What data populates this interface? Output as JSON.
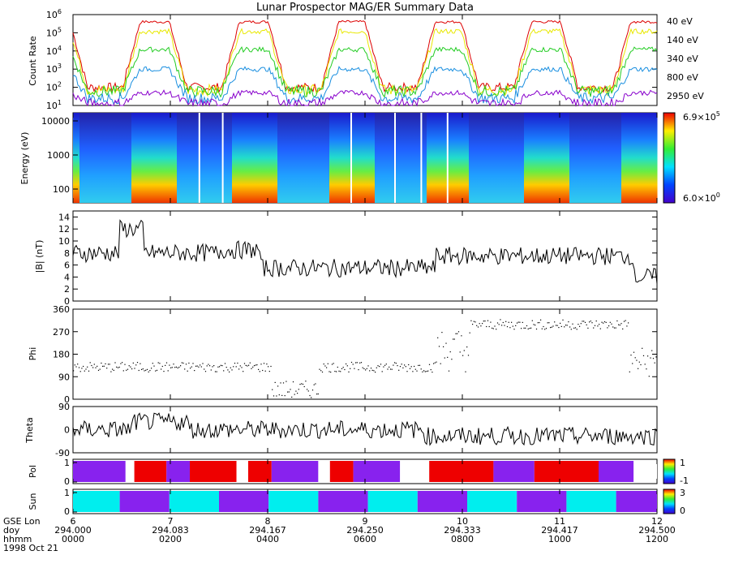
{
  "chart_data": {
    "title": "Lunar Prospector MAG/ER Summary Data",
    "type": "multi-panel time series",
    "panels": [
      {
        "name": "count-rate",
        "type": "line",
        "ylabel": "Count Rate",
        "yscale": "log",
        "ylim": [
          10,
          1000000
        ],
        "yticks": [
          "10",
          "10",
          "10",
          "10",
          "10",
          "10"
        ],
        "yticks_exp": [
          "1",
          "2",
          "3",
          "4",
          "5",
          "6"
        ],
        "series": [
          {
            "name": "40 eV",
            "color": "#dd0000",
            "low": 100,
            "high": 400000
          },
          {
            "name": "140 eV",
            "color": "#e8e800",
            "low": 70,
            "high": 120000
          },
          {
            "name": "340 eV",
            "color": "#22cc22",
            "low": 60,
            "high": 12000
          },
          {
            "name": "800 eV",
            "color": "#1a8fe0",
            "low": 25,
            "high": 1000
          },
          {
            "name": "2950 eV",
            "color": "#8800cc",
            "low": 12,
            "high": 50
          }
        ]
      },
      {
        "name": "energy-spectrogram",
        "type": "heatmap",
        "ylabel": "Energy (eV)",
        "yticks": [
          "10000",
          "1000",
          "100"
        ],
        "colorbar_max_mant": "6.9×10",
        "colorbar_max_exp": "5",
        "colorbar_min_mant": "6.0×10",
        "colorbar_min_exp": "0"
      },
      {
        "name": "field-magnitude",
        "type": "line",
        "ylabel": "|B| (nT)",
        "ylim": [
          0,
          15
        ],
        "yticks": [
          "0",
          "2",
          "4",
          "6",
          "8",
          "10",
          "12",
          "14"
        ]
      },
      {
        "name": "phi",
        "type": "scatter",
        "ylabel": "Phi",
        "ylim": [
          0,
          360
        ],
        "yticks": [
          "0",
          "90",
          "180",
          "270",
          "360"
        ]
      },
      {
        "name": "theta",
        "type": "line",
        "ylabel": "Theta",
        "ylim": [
          -90,
          90
        ],
        "yticks": [
          "-90",
          "0",
          "90"
        ]
      },
      {
        "name": "polarity",
        "type": "bar",
        "ylabel": "Pol",
        "yticks": [
          "0",
          "1"
        ],
        "colorbar": [
          "1",
          "-1"
        ]
      },
      {
        "name": "sun",
        "type": "bar",
        "ylabel": "Sun",
        "yticks": [
          "0",
          "1"
        ],
        "colorbar": [
          "3",
          "0"
        ]
      }
    ],
    "x_axis": {
      "row_labels": [
        "GSE Lon",
        "doy",
        "hhmm",
        "1998 Oct 21"
      ],
      "ticks": [
        {
          "lon": "6",
          "doy": "294.000",
          "hhmm": "0000"
        },
        {
          "lon": "7",
          "doy": "294.083",
          "hhmm": "0200"
        },
        {
          "lon": "8",
          "doy": "294.167",
          "hhmm": "0400"
        },
        {
          "lon": "9",
          "doy": "294.250",
          "hhmm": "0600"
        },
        {
          "lon": "10",
          "doy": "294.333",
          "hhmm": "0800"
        },
        {
          "lon": "11",
          "doy": "294.417",
          "hhmm": "1000"
        },
        {
          "lon": "12",
          "doy": "294.500",
          "hhmm": "1200"
        }
      ]
    },
    "polarity_segments": [
      [
        "purple",
        0.0,
        0.09
      ],
      [
        "white",
        0.09,
        0.105
      ],
      [
        "red",
        0.105,
        0.16
      ],
      [
        "purple",
        0.16,
        0.2
      ],
      [
        "red",
        0.2,
        0.28
      ],
      [
        "white",
        0.28,
        0.3
      ],
      [
        "red",
        0.3,
        0.34
      ],
      [
        "purple",
        0.34,
        0.42
      ],
      [
        "white",
        0.42,
        0.44
      ],
      [
        "red",
        0.44,
        0.48
      ],
      [
        "purple",
        0.48,
        0.56
      ],
      [
        "white",
        0.56,
        0.61
      ],
      [
        "red",
        0.61,
        0.72
      ],
      [
        "purple",
        0.72,
        0.79
      ],
      [
        "red",
        0.79,
        0.9
      ],
      [
        "purple",
        0.9,
        0.96
      ],
      [
        "white",
        0.96,
        1.0
      ]
    ],
    "sun_segments": [
      [
        "cyan",
        0.0,
        0.08
      ],
      [
        "purple",
        0.08,
        0.165
      ],
      [
        "cyan",
        0.165,
        0.25
      ],
      [
        "purple",
        0.25,
        0.335
      ],
      [
        "cyan",
        0.335,
        0.42
      ],
      [
        "purple",
        0.42,
        0.505
      ],
      [
        "cyan",
        0.505,
        0.59
      ],
      [
        "purple",
        0.59,
        0.675
      ],
      [
        "cyan",
        0.675,
        0.76
      ],
      [
        "purple",
        0.76,
        0.845
      ],
      [
        "cyan",
        0.845,
        0.93
      ],
      [
        "purple",
        0.93,
        1.0
      ]
    ]
  }
}
